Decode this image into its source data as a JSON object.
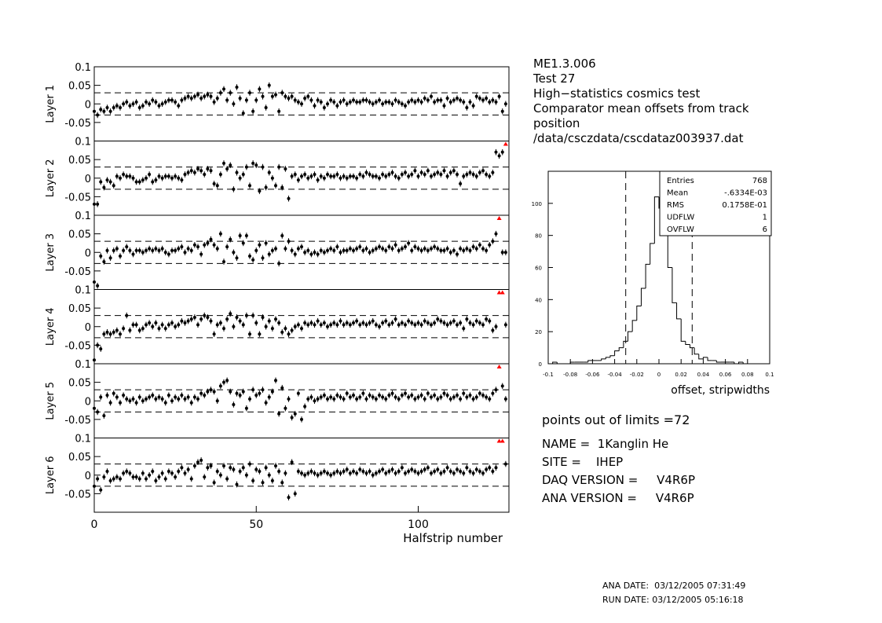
{
  "chart_data": [
    {
      "type": "errorbar",
      "xlabel": "Halfstrip number",
      "xlim": [
        0,
        128
      ],
      "xticks": [
        0,
        50,
        100
      ],
      "ylim": [
        -0.1,
        0.1
      ],
      "yticks": [
        -0.05,
        0,
        0.05,
        0.1
      ],
      "reference_lines": [
        -0.03,
        0.03
      ],
      "overflow_color": "#ff0000",
      "x": [
        0,
        1,
        2,
        3,
        4,
        5,
        6,
        7,
        8,
        9,
        10,
        11,
        12,
        13,
        14,
        15,
        16,
        17,
        18,
        19,
        20,
        21,
        22,
        23,
        24,
        25,
        26,
        27,
        28,
        29,
        30,
        31,
        32,
        33,
        34,
        35,
        36,
        37,
        38,
        39,
        40,
        41,
        42,
        43,
        44,
        45,
        46,
        47,
        48,
        49,
        50,
        51,
        52,
        53,
        54,
        55,
        56,
        57,
        58,
        59,
        60,
        61,
        62,
        63,
        64,
        65,
        66,
        67,
        68,
        69,
        70,
        71,
        72,
        73,
        74,
        75,
        76,
        77,
        78,
        79,
        80,
        81,
        82,
        83,
        84,
        85,
        86,
        87,
        88,
        89,
        90,
        91,
        92,
        93,
        94,
        95,
        96,
        97,
        98,
        99,
        100,
        101,
        102,
        103,
        104,
        105,
        106,
        107,
        108,
        109,
        110,
        111,
        112,
        113,
        114,
        115,
        116,
        117,
        118,
        119,
        120,
        121,
        122,
        123,
        124,
        125,
        126,
        127
      ],
      "series": [
        {
          "name": "Layer 1",
          "color": "#000000",
          "error": 0.008,
          "values": [
            -0.02,
            -0.03,
            -0.015,
            -0.02,
            -0.01,
            -0.02,
            -0.01,
            -0.005,
            -0.01,
            0,
            0.005,
            -0.005,
            0,
            0.005,
            -0.01,
            -0.005,
            0.005,
            0,
            0.01,
            0.005,
            -0.005,
            0,
            0.005,
            0.01,
            0.01,
            0.005,
            -0.005,
            0.01,
            0.015,
            0.02,
            0.015,
            0.02,
            0.025,
            0.015,
            0.02,
            0.025,
            0.02,
            0.005,
            0.015,
            0.03,
            0.04,
            0.01,
            0.03,
            0,
            0.045,
            0.015,
            -0.025,
            0.01,
            0.03,
            -0.02,
            0.01,
            0.04,
            0.02,
            -0.01,
            0.05,
            0.02,
            0.025,
            -0.02,
            0.03,
            0.02,
            0.015,
            0.02,
            0.01,
            0.005,
            0,
            0.015,
            0.02,
            0.01,
            -0.005,
            0.01,
            0.005,
            -0.01,
            0,
            0.01,
            0.005,
            -0.005,
            0.005,
            0.01,
            0,
            0.005,
            0.01,
            0.005,
            0.005,
            0.01,
            0.01,
            0.005,
            0,
            0.005,
            0.01,
            0,
            0.005,
            0.005,
            0,
            0.01,
            0.005,
            0,
            -0.005,
            0.005,
            0.01,
            0.005,
            0.01,
            0.005,
            0.015,
            0.01,
            0.02,
            0.005,
            0.01,
            0.01,
            -0.005,
            0.015,
            0.005,
            0.01,
            0.015,
            0.01,
            0.005,
            -0.01,
            0.005,
            -0.005,
            0.02,
            0.015,
            0.01,
            0.015,
            0.005,
            0.01,
            0.005,
            0.02,
            -0.02,
            0
          ]
        },
        {
          "name": "Layer 2",
          "color": "#000000",
          "error": 0.008,
          "values": [
            -0.07,
            -0.07,
            -0.01,
            -0.025,
            -0.005,
            -0.01,
            -0.02,
            0.005,
            0,
            0.01,
            0.005,
            0.005,
            0,
            -0.01,
            -0.01,
            -0.005,
            0,
            0.01,
            -0.01,
            -0.005,
            0.005,
            0,
            0.005,
            0.005,
            0,
            0.005,
            0,
            -0.005,
            0.01,
            0.015,
            0.02,
            0.015,
            0.025,
            0.02,
            0.01,
            0.025,
            0.02,
            -0.015,
            -0.02,
            0.01,
            0.04,
            0.025,
            0.035,
            -0.03,
            0.015,
            0,
            0.01,
            0.03,
            -0.02,
            0.04,
            0.035,
            -0.035,
            0.03,
            -0.025,
            0.015,
            0,
            -0.02,
            0.03,
            -0.025,
            0.025,
            -0.055,
            0.005,
            0.01,
            -0.005,
            0.005,
            0.01,
            0,
            0.005,
            0.01,
            -0.005,
            0.005,
            0,
            0.01,
            0.005,
            0.005,
            0.01,
            0,
            0.005,
            0,
            0.005,
            0.005,
            0,
            0.01,
            0.005,
            0.015,
            0.01,
            0.005,
            0.005,
            0,
            0.01,
            0.005,
            0.01,
            0.015,
            0.005,
            0,
            0.01,
            0.015,
            0.005,
            0.01,
            0.02,
            0.005,
            0.015,
            0.01,
            0.02,
            0.005,
            0.01,
            0.015,
            0.01,
            0.02,
            0.005,
            0.015,
            0.02,
            0.01,
            -0.015,
            0.005,
            0.01,
            0.015,
            0.01,
            0.005,
            0.015,
            0.02,
            0.01,
            0.005,
            0.015,
            0.07,
            0.06,
            0.07,
            0.12
          ]
        },
        {
          "name": "Layer 3",
          "color": "#000000",
          "error": 0.008,
          "values": [
            -0.08,
            -0.09,
            -0.01,
            -0.025,
            0.005,
            -0.015,
            0.005,
            0.01,
            -0.01,
            0.005,
            0.015,
            0.005,
            -0.005,
            0.005,
            0.005,
            0,
            0.005,
            0.01,
            0.005,
            0.01,
            0.005,
            0.01,
            0,
            -0.005,
            0.005,
            0.005,
            0.01,
            0.015,
            0,
            0.01,
            0.005,
            0.02,
            0.015,
            -0.005,
            0.02,
            0.025,
            0.035,
            0.02,
            0.01,
            0.05,
            -0.025,
            0.015,
            0.035,
            0,
            -0.015,
            0.045,
            0.025,
            0.045,
            -0.01,
            -0.02,
            0.005,
            0.02,
            -0.015,
            0.025,
            -0.005,
            0.005,
            0.01,
            -0.03,
            0.045,
            0.01,
            0.03,
            0.005,
            -0.005,
            0.01,
            0.015,
            0,
            0.005,
            -0.005,
            0,
            -0.005,
            0.005,
            0,
            0.005,
            0.01,
            0.005,
            0.015,
            0,
            0.005,
            0.005,
            0.01,
            0.005,
            0.01,
            0.015,
            0.005,
            0.01,
            0,
            0.005,
            0.01,
            0.015,
            0.01,
            0.005,
            0.015,
            0.01,
            0.02,
            0.005,
            0.01,
            0.015,
            0.025,
            0.005,
            0.015,
            0.01,
            0.005,
            0.01,
            0.005,
            0.01,
            0.015,
            0.01,
            0.005,
            0.005,
            0.01,
            0,
            0.005,
            -0.005,
            0.01,
            0.005,
            0.01,
            0.005,
            0.015,
            0.01,
            0.02,
            0.01,
            0.005,
            0.02,
            0.03,
            0.05,
            0.12,
            0,
            0
          ]
        },
        {
          "name": "Layer 4",
          "color": "#000000",
          "error": 0.008,
          "values": [
            -0.09,
            -0.05,
            -0.06,
            -0.02,
            -0.015,
            -0.02,
            -0.015,
            -0.01,
            -0.02,
            -0.005,
            0.03,
            -0.01,
            0.005,
            0.005,
            -0.01,
            -0.005,
            0.005,
            0.01,
            0,
            0.01,
            -0.005,
            0.005,
            -0.005,
            0.005,
            0.01,
            0,
            0.005,
            0.015,
            0.01,
            0.015,
            0.02,
            0.025,
            0.005,
            0.02,
            0.03,
            0.025,
            0.015,
            -0.02,
            0.005,
            0.01,
            -0.005,
            0.02,
            0.035,
            0,
            0.025,
            0.015,
            0.005,
            0.03,
            -0.02,
            0.03,
            0.01,
            -0.02,
            0.025,
            0,
            0.015,
            -0.005,
            0.02,
            0.01,
            -0.015,
            -0.005,
            -0.02,
            -0.01,
            0,
            0.005,
            -0.005,
            0.01,
            0.005,
            0.01,
            0.005,
            0.015,
            0.005,
            0.01,
            0,
            0.005,
            0.01,
            0.005,
            0.015,
            0.005,
            0.01,
            0.005,
            0.01,
            0.015,
            0.005,
            0.01,
            0.005,
            0.01,
            0.015,
            0.005,
            0,
            0.01,
            0.015,
            0.005,
            0.01,
            0.02,
            0.005,
            0.01,
            0.005,
            0.015,
            0.01,
            0.005,
            0.01,
            0.005,
            0.015,
            0.01,
            0.005,
            0.01,
            0.02,
            0.015,
            0.01,
            0.005,
            0.01,
            0.015,
            0.005,
            0.01,
            -0.005,
            0.02,
            0.01,
            0.005,
            0.015,
            0.01,
            0.005,
            0.02,
            0.015,
            -0.01,
            0,
            0.12,
            0.12,
            0.005
          ]
        },
        {
          "name": "Layer 5",
          "color": "#000000",
          "error": 0.008,
          "values": [
            -0.02,
            -0.03,
            0.01,
            -0.04,
            0.015,
            -0.005,
            0.02,
            0.01,
            -0.005,
            0.015,
            0.005,
            0,
            0.005,
            -0.005,
            0.01,
            0,
            0.005,
            0.01,
            0.015,
            0.005,
            0.01,
            0.005,
            -0.005,
            0.015,
            0,
            0.01,
            0.005,
            0.015,
            0.005,
            0.01,
            -0.005,
            0.01,
            0.005,
            0.02,
            0.015,
            0.025,
            0.03,
            0.025,
            0,
            0.04,
            0.05,
            0.055,
            0.025,
            -0.01,
            0.02,
            0.015,
            0.025,
            -0.02,
            0.005,
            0.03,
            0.015,
            0.02,
            0.03,
            -0.005,
            0.01,
            0.025,
            0.055,
            -0.035,
            0.035,
            -0.02,
            0.005,
            -0.045,
            -0.035,
            0.02,
            -0.05,
            -0.015,
            0.005,
            0.01,
            0,
            0.005,
            0.01,
            0.015,
            0.005,
            0.01,
            0.005,
            0.015,
            0.01,
            0.005,
            0.02,
            0.01,
            0.015,
            0.005,
            0.01,
            0.02,
            0.005,
            0.015,
            0.01,
            0.005,
            0.015,
            0.01,
            0.005,
            0.015,
            0.02,
            0.01,
            0.005,
            0.015,
            0.02,
            0.01,
            0.015,
            0.005,
            0.01,
            0.015,
            0.005,
            0.02,
            0.01,
            0.015,
            0.005,
            0.01,
            0.02,
            0.015,
            0.005,
            0.01,
            0.015,
            0.005,
            0.02,
            0.01,
            0.015,
            0.005,
            0.01,
            0.02,
            0.015,
            0.01,
            0.005,
            0.02,
            0.03,
            0.12,
            0.04,
            0.005
          ]
        },
        {
          "name": "Layer 6",
          "color": "#000000",
          "error": 0.008,
          "values": [
            -0.03,
            -0.01,
            -0.04,
            -0.005,
            0.01,
            -0.015,
            -0.01,
            -0.005,
            -0.01,
            0.005,
            0.01,
            0.005,
            -0.005,
            -0.005,
            -0.01,
            0.005,
            -0.01,
            0,
            0.01,
            -0.015,
            -0.005,
            0.005,
            -0.01,
            0.01,
            0.005,
            -0.005,
            0.01,
            0.02,
            0.005,
            0.015,
            -0.01,
            0.025,
            0.035,
            0.04,
            -0.005,
            0.02,
            0.025,
            -0.02,
            0.01,
            0,
            0.025,
            -0.01,
            0.02,
            0.015,
            -0.025,
            0.01,
            0.02,
            0,
            0.03,
            -0.015,
            0.015,
            0.01,
            -0.02,
            0.02,
            0,
            -0.015,
            0.025,
            0.01,
            -0.02,
            0.005,
            -0.06,
            0.035,
            -0.05,
            0.01,
            0.005,
            0,
            0.005,
            0.01,
            0.005,
            0,
            0.005,
            0.01,
            0.005,
            0,
            0.005,
            0.01,
            0.005,
            0.01,
            0.015,
            0.005,
            0.01,
            0.005,
            0.015,
            0.01,
            0.005,
            0.01,
            0,
            0.005,
            0.01,
            0.015,
            0.005,
            0.01,
            0.015,
            0.005,
            0.01,
            0.02,
            0.005,
            0.01,
            0.015,
            0.01,
            0.005,
            0.01,
            0.015,
            0.02,
            0.005,
            0.01,
            0.015,
            0.005,
            0.01,
            0.02,
            0.01,
            0.005,
            0.015,
            0.01,
            0.005,
            0.02,
            0.01,
            0.005,
            0.015,
            0.01,
            0.005,
            0.015,
            0.02,
            0.01,
            0.02,
            0.12,
            0.12,
            0.03
          ]
        }
      ]
    },
    {
      "type": "histogram",
      "xlabel": "offset, stripwidths",
      "xlim": [
        -0.1,
        0.1
      ],
      "xticks": [
        -0.1,
        -0.08,
        -0.06,
        -0.04,
        -0.02,
        0,
        0.02,
        0.04,
        0.06,
        0.08,
        0.1
      ],
      "ylim": [
        0,
        120
      ],
      "yticks": [
        0,
        20,
        40,
        60,
        80,
        100
      ],
      "reference_lines": [
        -0.03,
        0.03
      ],
      "color": "#000000",
      "bins": [
        -0.1,
        -0.096,
        -0.092,
        -0.088,
        -0.084,
        -0.08,
        -0.076,
        -0.072,
        -0.068,
        -0.064,
        -0.06,
        -0.056,
        -0.052,
        -0.048,
        -0.044,
        -0.04,
        -0.036,
        -0.032,
        -0.028,
        -0.024,
        -0.02,
        -0.016,
        -0.012,
        -0.008,
        -0.004,
        0,
        0.004,
        0.008,
        0.012,
        0.016,
        0.02,
        0.024,
        0.028,
        0.032,
        0.036,
        0.04,
        0.044,
        0.048,
        0.052,
        0.056,
        0.06,
        0.064,
        0.068,
        0.072,
        0.076,
        0.08,
        0.084,
        0.088,
        0.092,
        0.096,
        0.1
      ],
      "counts": [
        0,
        1,
        0,
        0,
        0,
        1,
        1,
        1,
        1,
        2,
        2,
        2,
        3,
        4,
        5,
        8,
        10,
        14,
        20,
        27,
        36,
        47,
        62,
        75,
        104,
        97,
        80,
        60,
        38,
        28,
        14,
        12,
        10,
        6,
        3,
        4,
        2,
        2,
        1,
        1,
        1,
        1,
        0,
        1,
        0,
        0,
        0,
        0,
        0,
        0
      ],
      "stats": [
        [
          "Entries",
          "768"
        ],
        [
          "Mean",
          "-.6334E-03"
        ],
        [
          "RMS",
          "0.1758E-01"
        ],
        [
          "UDFLW",
          "1"
        ],
        [
          "OVFLW",
          "6"
        ]
      ]
    }
  ],
  "info": {
    "header": [
      "ME1.3.006",
      "Test 27",
      "High−statistics cosmics test",
      "Comparator mean offsets from track",
      "position",
      "/data/csczdata/cscdataz003937.dat"
    ],
    "out_of_limits": "points out of limits =72",
    "fields": [
      "NAME =  1Kanglin He",
      "SITE =    IHEP",
      "DAQ VERSION =     V4R6P",
      "ANA VERSION =     V4R6P"
    ],
    "dates": [
      "ANA DATE:  03/12/2005 07:31:49",
      "RUN DATE: 03/12/2005 05:16:18"
    ]
  }
}
